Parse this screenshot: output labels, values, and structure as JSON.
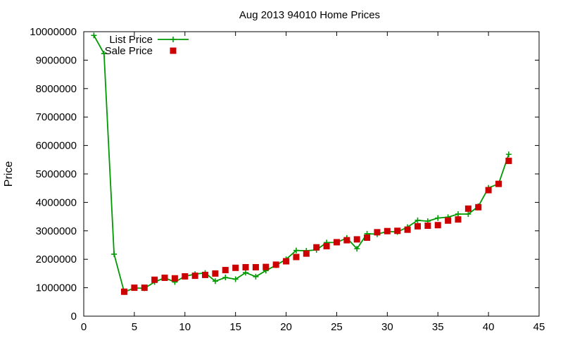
{
  "chart_data": {
    "type": "line",
    "title": "Aug 2013 94010 Home Prices",
    "xlabel": "",
    "ylabel": "Price",
    "xlim": [
      0,
      45
    ],
    "ylim": [
      0,
      10000000
    ],
    "xticks": [
      0,
      5,
      10,
      15,
      20,
      25,
      30,
      35,
      40,
      45
    ],
    "yticks": [
      0,
      1000000,
      2000000,
      3000000,
      4000000,
      5000000,
      6000000,
      7000000,
      8000000,
      9000000,
      10000000
    ],
    "grid": false,
    "legend": "top-left",
    "series": [
      {
        "name": "List Price",
        "style": "line-plus",
        "color": "#009900",
        "x": [
          1,
          2,
          3,
          4,
          5,
          6,
          7,
          8,
          9,
          10,
          11,
          12,
          13,
          14,
          15,
          16,
          17,
          18,
          19,
          20,
          21,
          22,
          23,
          24,
          25,
          26,
          27,
          28,
          29,
          30,
          31,
          32,
          33,
          34,
          35,
          36,
          37,
          38,
          39,
          40,
          41,
          42
        ],
        "y": [
          9870000,
          9230000,
          2180000,
          850000,
          990000,
          980000,
          1200000,
          1350000,
          1200000,
          1400000,
          1480000,
          1520000,
          1230000,
          1360000,
          1300000,
          1530000,
          1390000,
          1600000,
          1790000,
          2000000,
          2310000,
          2300000,
          2330000,
          2590000,
          2590000,
          2750000,
          2370000,
          2900000,
          2880000,
          2980000,
          2960000,
          3130000,
          3370000,
          3340000,
          3450000,
          3480000,
          3590000,
          3590000,
          3860000,
          4510000,
          4650000,
          5690000
        ]
      },
      {
        "name": "Sale Price",
        "style": "square",
        "color": "#cc0000",
        "x": [
          4,
          5,
          6,
          7,
          8,
          9,
          10,
          11,
          12,
          13,
          14,
          15,
          16,
          17,
          18,
          19,
          20,
          21,
          22,
          23,
          24,
          25,
          26,
          27,
          28,
          29,
          30,
          31,
          32,
          33,
          34,
          35,
          36,
          37,
          38,
          39,
          40,
          41,
          42
        ],
        "y": [
          860000,
          1000000,
          1000000,
          1280000,
          1350000,
          1330000,
          1400000,
          1420000,
          1450000,
          1500000,
          1620000,
          1700000,
          1720000,
          1720000,
          1730000,
          1810000,
          1930000,
          2080000,
          2200000,
          2420000,
          2460000,
          2600000,
          2670000,
          2700000,
          2760000,
          2950000,
          2990000,
          3000000,
          3040000,
          3160000,
          3180000,
          3200000,
          3360000,
          3400000,
          3780000,
          3830000,
          4430000,
          4650000,
          5460000
        ]
      }
    ]
  }
}
